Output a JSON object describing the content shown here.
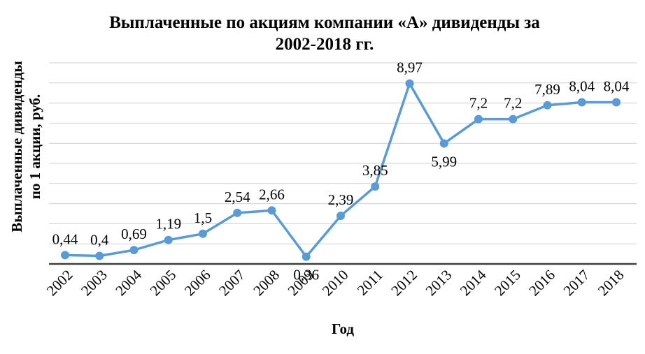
{
  "chart_data": {
    "type": "line",
    "title_line1": "Выплаченные по акциям компании «А» дивиденды за",
    "title_line2": "2002-2018 гг.",
    "xlabel": "Год",
    "ylabel_line1": "Выплаченные дивиденды",
    "ylabel_line2": "по 1 акции, руб.",
    "categories": [
      "2002",
      "2003",
      "2004",
      "2005",
      "2006",
      "2007",
      "2008",
      "2009",
      "2010",
      "2011",
      "2012",
      "2013",
      "2014",
      "2015",
      "2016",
      "2017",
      "2018"
    ],
    "values": [
      0.44,
      0.4,
      0.69,
      1.19,
      1.5,
      2.54,
      2.66,
      0.36,
      2.39,
      3.85,
      8.97,
      5.99,
      7.2,
      7.2,
      7.89,
      8.04,
      8.04
    ],
    "data_labels": [
      "0,44",
      "0,4",
      "0,69",
      "1,19",
      "1,5",
      "2,54",
      "2,66",
      "0,36",
      "2,39",
      "3,85",
      "8,97",
      "5,99",
      "7,2",
      "7,2",
      "7,89",
      "8,04",
      "8,04"
    ],
    "ylim": [
      0,
      10
    ],
    "grid": true,
    "legend": "none",
    "line_color": "#5b9bd5",
    "grid_color": "#d0d0d0",
    "axis_color": "#404040"
  }
}
